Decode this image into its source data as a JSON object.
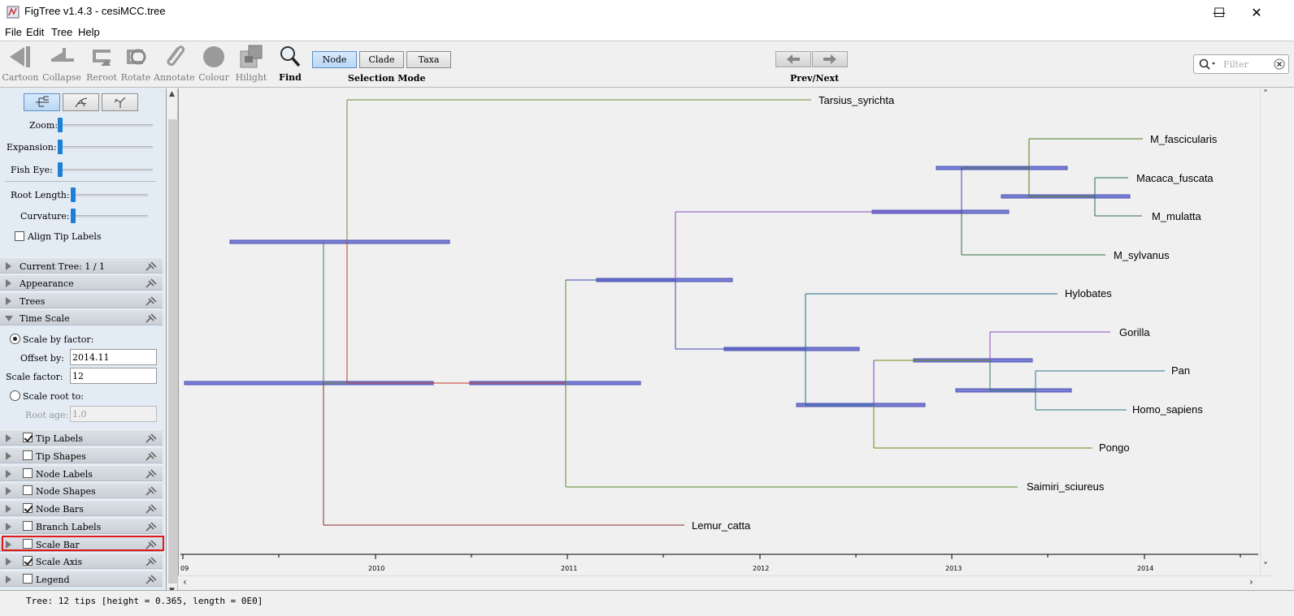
{
  "window": {
    "title": "FigTree v1.4.3 - cesiMCC.tree",
    "minimize": "—",
    "maximize": "☐",
    "close": "✕"
  },
  "menu": [
    "File",
    "Edit",
    "Tree",
    "Help"
  ],
  "toolbar": {
    "tools": [
      {
        "label": "Cartoon",
        "icon": "cartoon-icon"
      },
      {
        "label": "Collapse",
        "icon": "collapse-icon"
      },
      {
        "label": "Reroot",
        "icon": "reroot-icon"
      },
      {
        "label": "Rotate",
        "icon": "rotate-icon"
      },
      {
        "label": "Annotate",
        "icon": "annotate-icon"
      },
      {
        "label": "Colour",
        "icon": "colour-icon"
      },
      {
        "label": "Hilight",
        "icon": "hilight-icon"
      },
      {
        "label": "Find",
        "icon": "find-icon"
      }
    ],
    "selection_mode": {
      "label": "Selection Mode",
      "options": [
        "Node",
        "Clade",
        "Taxa"
      ],
      "selected": "Node"
    },
    "prev_next_label": "Prev/Next",
    "filter_placeholder": "Filter"
  },
  "sidebar": {
    "sliders": {
      "zoom": "Zoom:",
      "expansion": "Expansion:",
      "fish_eye": "Fish Eye:",
      "root_length": "Root Length:",
      "curvature": "Curvature:"
    },
    "align_tip_labels": "Align Tip Labels",
    "time_scale": {
      "scale_by_factor": "Scale by factor:",
      "offset_by_label": "Offset by:",
      "offset_by_value": "2014.11",
      "scale_factor_label": "Scale factor:",
      "scale_factor_value": "12",
      "scale_root_to": "Scale root to:",
      "root_age_label": "Root age:",
      "root_age_value": "1.0"
    },
    "panels": [
      {
        "label": "Current Tree: 1 / 1",
        "checkbox": null,
        "open": false
      },
      {
        "label": "Appearance",
        "checkbox": null,
        "open": false
      },
      {
        "label": "Trees",
        "checkbox": null,
        "open": false
      },
      {
        "label": "Time Scale",
        "checkbox": null,
        "open": true
      },
      {
        "label": "Tip Labels",
        "checkbox": true,
        "open": false
      },
      {
        "label": "Tip Shapes",
        "checkbox": false,
        "open": false
      },
      {
        "label": "Node Labels",
        "checkbox": false,
        "open": false
      },
      {
        "label": "Node Shapes",
        "checkbox": false,
        "open": false
      },
      {
        "label": "Node Bars",
        "checkbox": true,
        "open": false
      },
      {
        "label": "Branch Labels",
        "checkbox": false,
        "open": false
      },
      {
        "label": "Scale Bar",
        "checkbox": false,
        "open": false
      },
      {
        "label": "Scale Axis",
        "checkbox": true,
        "open": false
      },
      {
        "label": "Legend",
        "checkbox": false,
        "open": false
      }
    ]
  },
  "tree": {
    "taxa": [
      "Tarsius_syrichta",
      "M_fascicularis",
      "Macaca_fuscata",
      "M_mulatta",
      "M_sylvanus",
      "Hylobates",
      "Gorilla",
      "Pan",
      "Homo_sapiens",
      "Pongo",
      "Saimiri_sciureus",
      "Lemur_catta"
    ],
    "axis_ticks": [
      "09",
      "2010",
      "2011",
      "2012",
      "2013",
      "2014"
    ],
    "node_bar_color": "#7b7fd6"
  },
  "status": "Tree: 12 tips [height = 0.365, length = 0E0]"
}
